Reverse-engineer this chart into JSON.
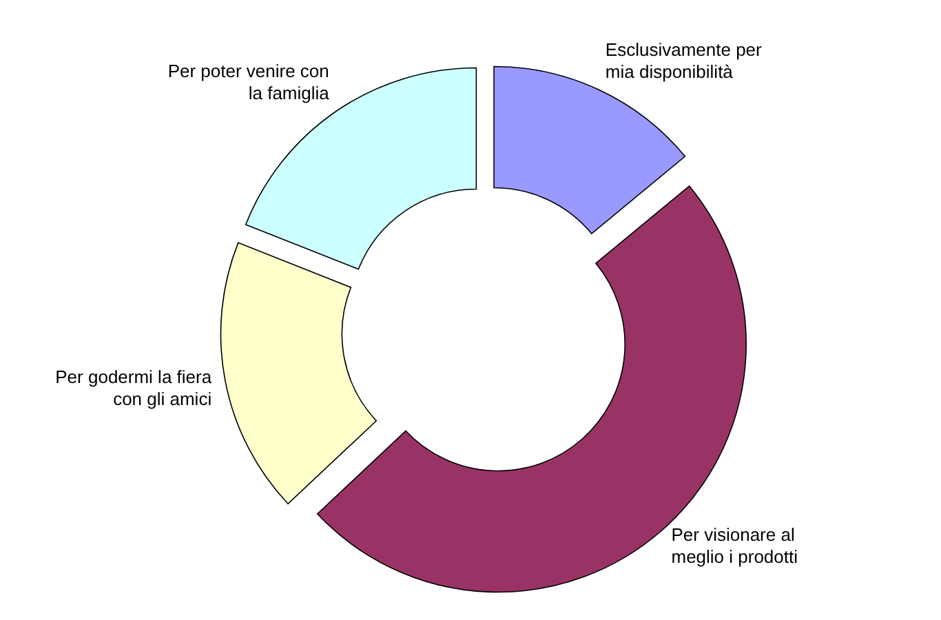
{
  "chart_data": {
    "type": "donut",
    "categories": [
      "Esclusivamente per mia disponibilità",
      "Per visionare al meglio i prodotti",
      "Per godermi la fiera con gli amici",
      "Per poter venire con la famiglia"
    ],
    "values": [
      14,
      49,
      18,
      19
    ],
    "colors": [
      "#9999ff",
      "#993366",
      "#ffffcc",
      "#ccffff"
    ]
  }
}
